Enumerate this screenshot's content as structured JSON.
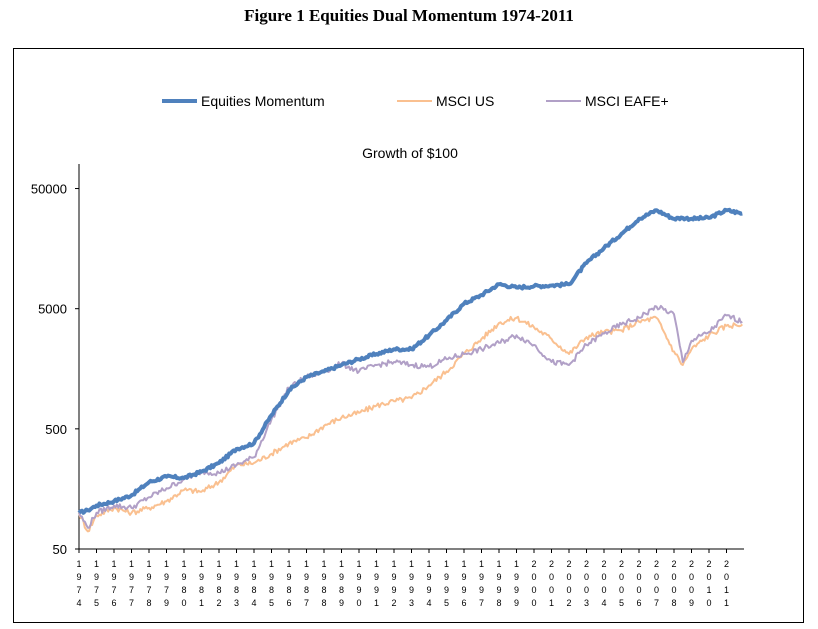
{
  "page_title": "Figure 1 Equities Dual Momentum 1974-2011",
  "chart_data": {
    "type": "line",
    "title": "Growth of $100",
    "xlabel": "",
    "ylabel": "",
    "yscale": "log",
    "ylim": [
      50,
      80000
    ],
    "yticks": [
      50,
      500,
      5000,
      50000
    ],
    "ytick_labels": [
      "50",
      "500",
      "5000",
      "50000"
    ],
    "x_categories": [
      "1974",
      "1975",
      "1976",
      "1977",
      "1978",
      "1979",
      "1980",
      "1981",
      "1982",
      "1983",
      "1984",
      "1985",
      "1986",
      "1987",
      "1988",
      "1989",
      "1990",
      "1991",
      "1992",
      "1993",
      "1994",
      "1995",
      "1996",
      "1997",
      "1998",
      "1999",
      "2000",
      "2001",
      "2002",
      "2003",
      "2004",
      "2005",
      "2006",
      "2007",
      "2008",
      "2009",
      "2010",
      "2011"
    ],
    "x_tick_labels_vertical": [
      [
        "1",
        "9",
        "7",
        "4"
      ],
      [
        "1",
        "9",
        "7",
        "5"
      ],
      [
        "1",
        "9",
        "7",
        "6"
      ],
      [
        "1",
        "9",
        "7",
        "7"
      ],
      [
        "1",
        "9",
        "7",
        "8"
      ],
      [
        "1",
        "9",
        "7",
        "9"
      ],
      [
        "1",
        "9",
        "8",
        "0"
      ],
      [
        "1",
        "9",
        "8",
        "1"
      ],
      [
        "1",
        "9",
        "8",
        "2"
      ],
      [
        "1",
        "9",
        "8",
        "3"
      ],
      [
        "1",
        "9",
        "8",
        "4"
      ],
      [
        "1",
        "9",
        "8",
        "5"
      ],
      [
        "1",
        "9",
        "8",
        "6"
      ],
      [
        "1",
        "9",
        "8",
        "7"
      ],
      [
        "1",
        "9",
        "8",
        "8"
      ],
      [
        "1",
        "9",
        "8",
        "9"
      ],
      [
        "1",
        "9",
        "9",
        "0"
      ],
      [
        "1",
        "9",
        "9",
        "1"
      ],
      [
        "1",
        "9",
        "9",
        "2"
      ],
      [
        "1",
        "9",
        "9",
        "3"
      ],
      [
        "1",
        "9",
        "9",
        "4"
      ],
      [
        "1",
        "9",
        "9",
        "5"
      ],
      [
        "1",
        "9",
        "9",
        "6"
      ],
      [
        "1",
        "9",
        "9",
        "7"
      ],
      [
        "1",
        "9",
        "9",
        "8"
      ],
      [
        "1",
        "9",
        "9",
        "9"
      ],
      [
        "2",
        "0",
        "0",
        "0"
      ],
      [
        "2",
        "0",
        "0",
        "1"
      ],
      [
        "2",
        "0",
        "0",
        "2"
      ],
      [
        "2",
        "0",
        "0",
        "3"
      ],
      [
        "2",
        "0",
        "0",
        "4"
      ],
      [
        "2",
        "0",
        "0",
        "5"
      ],
      [
        "2",
        "0",
        "0",
        "6"
      ],
      [
        "2",
        "0",
        "0",
        "7"
      ],
      [
        "2",
        "0",
        "0",
        "8"
      ],
      [
        "2",
        "0",
        "0",
        "9"
      ],
      [
        "2",
        "0",
        "1",
        "0"
      ],
      [
        "2",
        "0",
        "1",
        "1"
      ]
    ],
    "legend": {
      "position": "top-center",
      "entries": [
        "Equities Momentum",
        "MSCI US",
        "MSCI EAFE+"
      ]
    },
    "x": [
      1974,
      1974.5,
      1975,
      1976,
      1977,
      1978,
      1979,
      1980,
      1981,
      1982,
      1983,
      1984,
      1985,
      1986,
      1987,
      1988,
      1989,
      1990,
      1991,
      1992,
      1993,
      1994,
      1995,
      1996,
      1997,
      1998,
      1999,
      2000,
      2001,
      2002,
      2003,
      2004,
      2005,
      2006,
      2007,
      2008,
      2008.5,
      2009,
      2010,
      2011,
      2011.9
    ],
    "series": [
      {
        "name": "Equities Momentum",
        "color": "#4F81BD",
        "values": [
          100,
          105,
          115,
          125,
          140,
          180,
          200,
          195,
          220,
          260,
          340,
          380,
          650,
          1050,
          1350,
          1500,
          1700,
          1900,
          2100,
          2300,
          2300,
          3000,
          4000,
          5500,
          6500,
          8000,
          7500,
          7700,
          7800,
          8000,
          12000,
          16000,
          21000,
          28000,
          33000,
          28000,
          28500,
          28000,
          28500,
          33000,
          31000
        ]
      },
      {
        "name": "MSCI US",
        "color": "#FAC090",
        "values": [
          100,
          70,
          95,
          110,
          100,
          110,
          125,
          155,
          150,
          180,
          250,
          260,
          310,
          380,
          420,
          530,
          620,
          680,
          780,
          850,
          900,
          1150,
          1500,
          2100,
          2800,
          3800,
          4200,
          3500,
          2800,
          2100,
          2900,
          3200,
          3300,
          3900,
          4200,
          2200,
          1700,
          2300,
          3000,
          3600,
          3700
        ]
      },
      {
        "name": "MSCI EAFE+",
        "color": "#B1A0C7",
        "values": [
          100,
          75,
          100,
          115,
          110,
          135,
          160,
          190,
          220,
          215,
          250,
          290,
          600,
          1100,
          1350,
          1500,
          1750,
          1500,
          1700,
          1800,
          1700,
          1650,
          1900,
          2100,
          2300,
          2600,
          3000,
          2500,
          1800,
          1700,
          2500,
          3100,
          3700,
          4200,
          5200,
          4500,
          1800,
          2700,
          3200,
          4400,
          3900
        ]
      }
    ]
  }
}
